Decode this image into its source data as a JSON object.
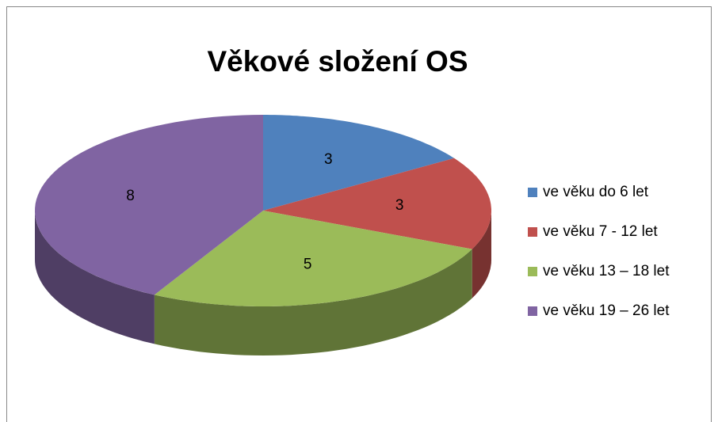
{
  "chart_data": {
    "type": "pie",
    "title": "Věkové složení OS",
    "categories": [
      "ve věku do 6 let",
      "ve věku 7 - 12 let",
      "ve věku 13 – 18 let",
      "ve věku 19 – 26 let"
    ],
    "values": [
      3,
      3,
      5,
      8
    ],
    "colors": [
      "#4f81bd",
      "#c0504d",
      "#9bbb59",
      "#8064a2"
    ],
    "legend": "right"
  }
}
